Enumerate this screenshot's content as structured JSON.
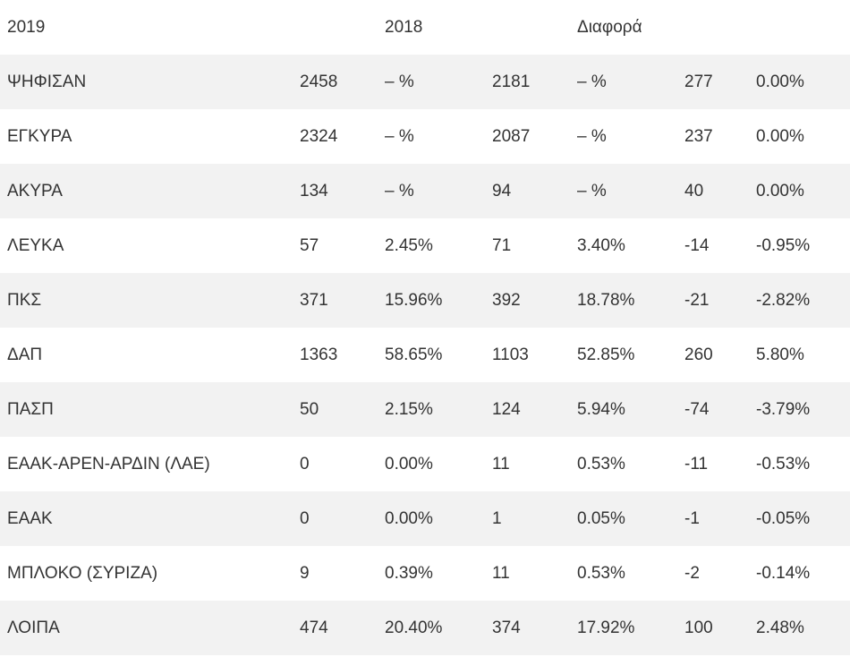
{
  "header": {
    "year_2019": "2019",
    "year_2018": "2018",
    "difference": "Διαφορά"
  },
  "rows": [
    {
      "label": "ΨΗΦΙΣΑΝ",
      "v2019": "2458",
      "p2019": "– %",
      "v2018": "2181",
      "p2018": "– %",
      "diff": "277",
      "pdiff": "0.00%"
    },
    {
      "label": "ΕΓΚΥΡΑ",
      "v2019": "2324",
      "p2019": "– %",
      "v2018": "2087",
      "p2018": "– %",
      "diff": "237",
      "pdiff": "0.00%"
    },
    {
      "label": "ΑΚΥΡΑ",
      "v2019": "134",
      "p2019": "– %",
      "v2018": "94",
      "p2018": "– %",
      "diff": "40",
      "pdiff": "0.00%"
    },
    {
      "label": "ΛΕΥΚΑ",
      "v2019": "57",
      "p2019": "2.45%",
      "v2018": "71",
      "p2018": "3.40%",
      "diff": "-14",
      "pdiff": "-0.95%"
    },
    {
      "label": "ΠΚΣ",
      "v2019": "371",
      "p2019": "15.96%",
      "v2018": "392",
      "p2018": "18.78%",
      "diff": "-21",
      "pdiff": "-2.82%"
    },
    {
      "label": "ΔΑΠ",
      "v2019": "1363",
      "p2019": "58.65%",
      "v2018": "1103",
      "p2018": "52.85%",
      "diff": "260",
      "pdiff": "5.80%"
    },
    {
      "label": "ΠΑΣΠ",
      "v2019": "50",
      "p2019": "2.15%",
      "v2018": "124",
      "p2018": "5.94%",
      "diff": "-74",
      "pdiff": "-3.79%"
    },
    {
      "label": "ΕΑΑΚ-ΑΡΕΝ-ΑΡΔΙΝ (ΛΑΕ)",
      "v2019": "0",
      "p2019": "0.00%",
      "v2018": "11",
      "p2018": "0.53%",
      "diff": "-11",
      "pdiff": "-0.53%"
    },
    {
      "label": "ΕΑΑΚ",
      "v2019": "0",
      "p2019": "0.00%",
      "v2018": "1",
      "p2018": "0.05%",
      "diff": "-1",
      "pdiff": "-0.05%"
    },
    {
      "label": "ΜΠΛΟΚΟ (ΣΥΡΙΖΑ)",
      "v2019": "9",
      "p2019": "0.39%",
      "v2018": "11",
      "p2018": "0.53%",
      "diff": "-2",
      "pdiff": "-0.14%"
    },
    {
      "label": "ΛΟΙΠΑ",
      "v2019": "474",
      "p2019": "20.40%",
      "v2018": "374",
      "p2018": "17.92%",
      "diff": "100",
      "pdiff": "2.48%"
    }
  ],
  "colors": {
    "text": "#333333",
    "stripe": "#f2f2f2",
    "background": "#ffffff"
  }
}
